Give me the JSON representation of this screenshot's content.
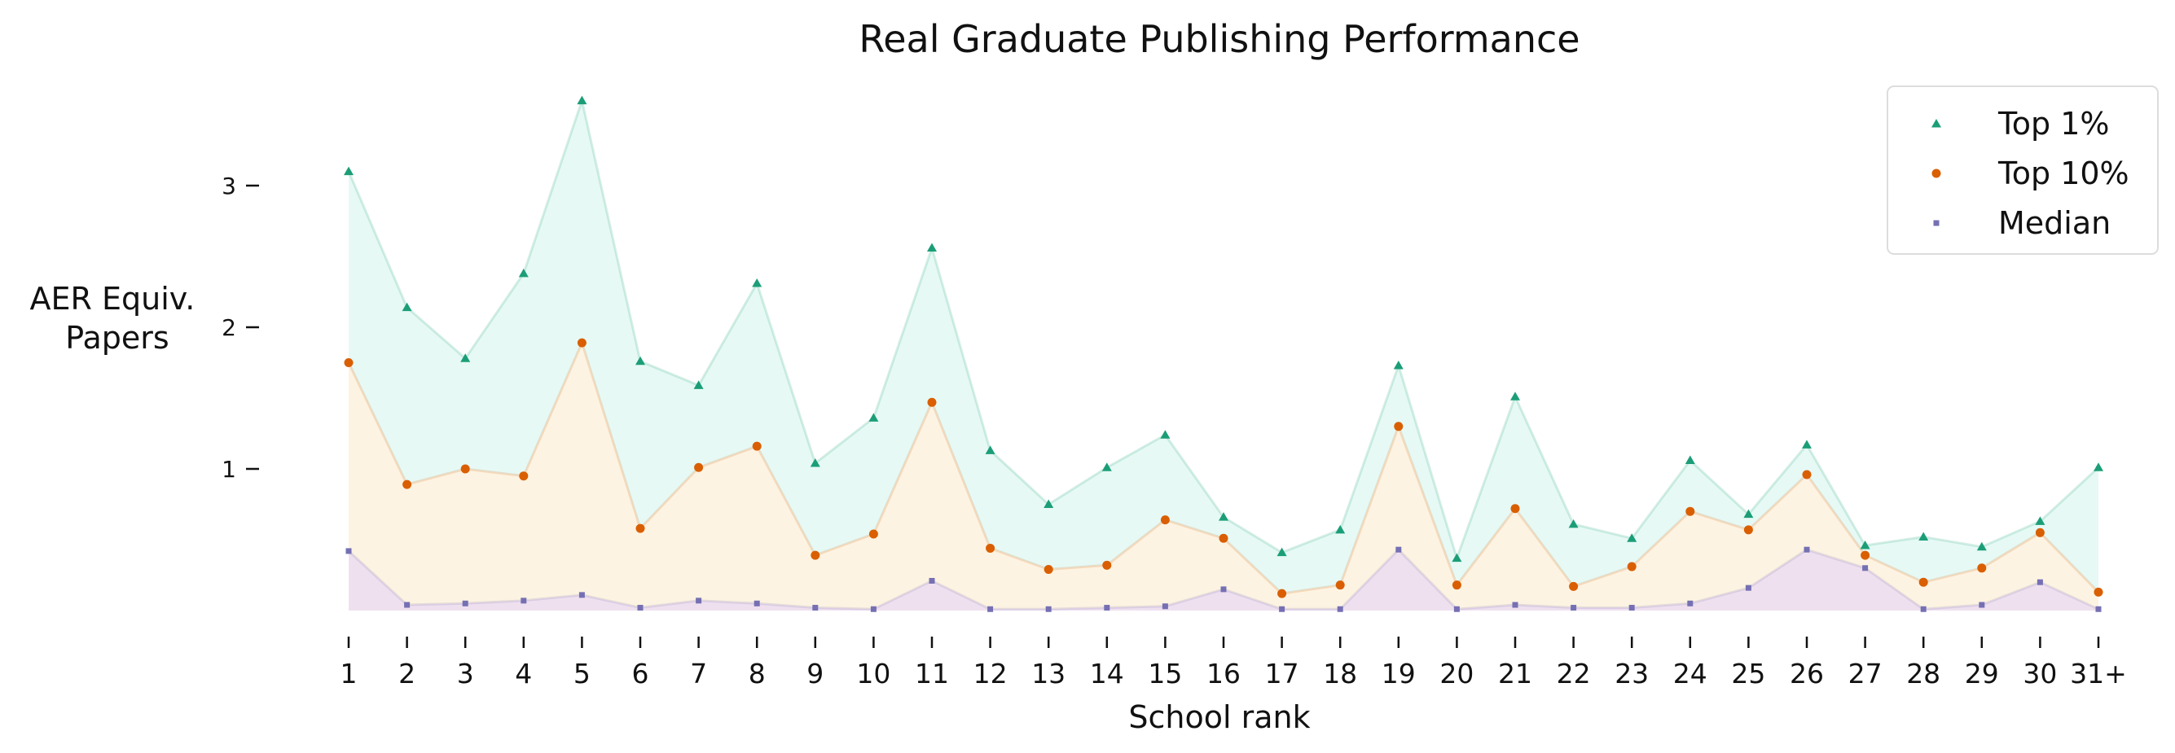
{
  "chart_data": {
    "type": "area",
    "title": "Real Graduate Publishing Performance",
    "xlabel": "School rank",
    "ylabel": [
      "AER Equiv.",
      "Papers"
    ],
    "categories": [
      "1",
      "2",
      "3",
      "4",
      "5",
      "6",
      "7",
      "8",
      "9",
      "10",
      "11",
      "12",
      "13",
      "14",
      "15",
      "16",
      "17",
      "18",
      "19",
      "20",
      "21",
      "22",
      "23",
      "24",
      "25",
      "26",
      "27",
      "28",
      "29",
      "30",
      "31+"
    ],
    "yticks": [
      1,
      2,
      3
    ],
    "ylim": [
      -0.15,
      3.7
    ],
    "grid": false,
    "legend_position": "top-right",
    "series": [
      {
        "name": "Top 1%",
        "marker": "triangle",
        "color": "#1b9e77",
        "fill": "#e6f9f5",
        "values": [
          3.1,
          2.14,
          1.78,
          2.38,
          3.6,
          1.76,
          1.59,
          2.31,
          1.04,
          1.36,
          2.56,
          1.13,
          0.75,
          1.01,
          1.24,
          0.66,
          0.41,
          0.57,
          1.73,
          0.37,
          1.51,
          0.61,
          0.51,
          1.06,
          0.68,
          1.17,
          0.46,
          0.52,
          0.45,
          0.63,
          1.01
        ]
      },
      {
        "name": "Top 10%",
        "marker": "circle",
        "color": "#d95f02",
        "fill": "#fdf3e2",
        "values": [
          1.75,
          0.89,
          1.0,
          0.95,
          1.89,
          0.58,
          1.01,
          1.16,
          0.39,
          0.54,
          1.47,
          0.44,
          0.29,
          0.32,
          0.64,
          0.51,
          0.12,
          0.18,
          1.3,
          0.18,
          0.72,
          0.17,
          0.31,
          0.7,
          0.57,
          0.96,
          0.39,
          0.2,
          0.3,
          0.55,
          0.13
        ]
      },
      {
        "name": "Median",
        "marker": "square",
        "color": "#7570b3",
        "fill": "#efe0ef",
        "values": [
          0.42,
          0.04,
          0.05,
          0.07,
          0.11,
          0.02,
          0.07,
          0.05,
          0.02,
          0.01,
          0.21,
          0.01,
          0.01,
          0.02,
          0.03,
          0.15,
          0.01,
          0.01,
          0.43,
          0.01,
          0.04,
          0.02,
          0.02,
          0.05,
          0.16,
          0.43,
          0.3,
          0.01,
          0.04,
          0.2,
          0.01
        ]
      }
    ]
  }
}
